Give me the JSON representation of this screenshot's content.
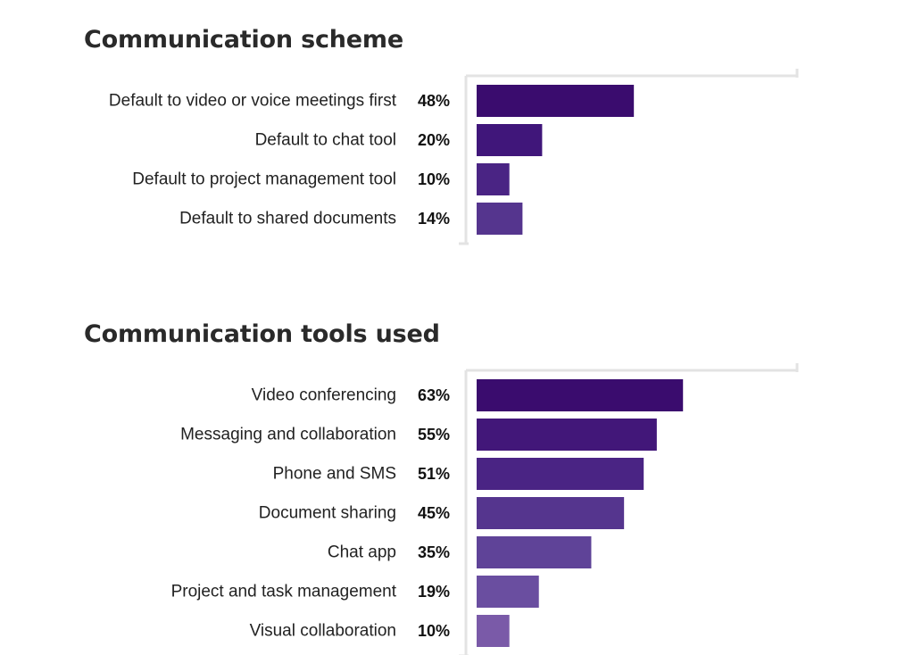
{
  "colors": {
    "axis": "#e3e3e3",
    "bar_dark": "#3a0c6e",
    "bar_light": "#7a5aa8"
  },
  "chart_data": [
    {
      "type": "bar",
      "orientation": "horizontal",
      "title": "Communication scheme",
      "categories": [
        "Default to video or voice meetings first",
        "Default to chat tool",
        "Default to project management tool",
        "Default to shared documents"
      ],
      "values": [
        48,
        20,
        10,
        14
      ],
      "value_labels": [
        "48%",
        "20%",
        "10%",
        "14%"
      ],
      "xlim": [
        0,
        100
      ],
      "grid": false,
      "bar_colors": [
        "#3a0c6e",
        "#40167a",
        "#4a2484",
        "#55358e"
      ]
    },
    {
      "type": "bar",
      "orientation": "horizontal",
      "title": "Communication tools used",
      "categories": [
        "Video conferencing",
        "Messaging and collaboration",
        "Phone and SMS",
        "Document sharing",
        "Chat app",
        "Project and task management",
        "Visual collaboration"
      ],
      "values": [
        63,
        55,
        51,
        45,
        35,
        19,
        10
      ],
      "value_labels": [
        "63%",
        "55%",
        "51%",
        "45%",
        "35%",
        "19%",
        "10%"
      ],
      "xlim": [
        0,
        100
      ],
      "grid": false,
      "bar_colors": [
        "#3a0c6e",
        "#421779",
        "#4a2484",
        "#55358e",
        "#5f4398",
        "#6a4ea0",
        "#7a5aa8"
      ]
    }
  ]
}
